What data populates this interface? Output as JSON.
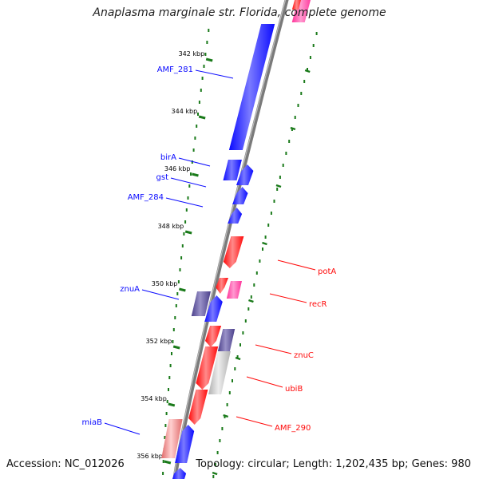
{
  "title": "Anaplasma marginale str. Florida, complete genome",
  "footer": {
    "accession": "Accession: NC_012026",
    "summary": "Topology: circular; Length: 1,202,435 bp; Genes: 980"
  },
  "colors": {
    "forward": "#0a0aff",
    "reverse": "#ff0a0a",
    "dark": "#4a3f8a",
    "pink": "#ff3399",
    "gray": "#c8c8c8",
    "tick": "#1a7a1a"
  },
  "ticks": [
    {
      "label": "342 kbp"
    },
    {
      "label": "344 kbp"
    },
    {
      "label": "346 kbp"
    },
    {
      "label": "348 kbp"
    },
    {
      "label": "350 kbp"
    },
    {
      "label": "352 kbp"
    },
    {
      "label": "354 kbp"
    },
    {
      "label": "356 kbp"
    }
  ],
  "left_genes": [
    {
      "name": "AMF_281"
    },
    {
      "name": "birA"
    },
    {
      "name": "gst"
    },
    {
      "name": "AMF_284"
    },
    {
      "name": "znuA"
    },
    {
      "name": "miaB"
    }
  ],
  "right_genes": [
    {
      "name": "potA"
    },
    {
      "name": "recR"
    },
    {
      "name": "znuC"
    },
    {
      "name": "ubiB"
    },
    {
      "name": "AMF_290"
    }
  ]
}
